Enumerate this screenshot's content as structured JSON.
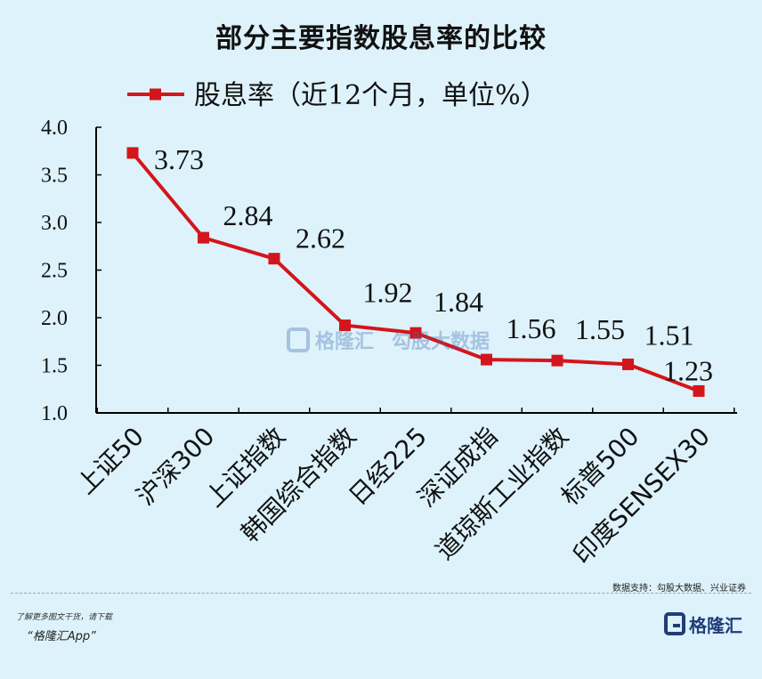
{
  "title": "部分主要指数股息率的比较",
  "source_note": "数据支持：勾股大数据、兴业证券",
  "promo_line1": "了解更多图文干货，请下载",
  "promo_line2": "“格隆汇App”",
  "logo_text": "格隆汇",
  "watermark_text1": "格隆汇",
  "watermark_text2": "勾股大数据",
  "colors": {
    "series": "#d4151b",
    "background": "#ddf2fb",
    "axis": "#000000"
  },
  "chart_data": {
    "type": "line",
    "categories": [
      "上证50",
      "沪深300",
      "上证指数",
      "韩国综合指数",
      "日经225",
      "深证成指",
      "道琼斯工业指数",
      "标普500",
      "印度SENSEX30"
    ],
    "series": [
      {
        "name": "股息率（近12个月，单位%）",
        "values": [
          3.73,
          2.84,
          2.62,
          1.92,
          1.84,
          1.56,
          1.55,
          1.51,
          1.23
        ],
        "labels": [
          "3.73",
          "2.84",
          "2.62",
          "1.92",
          "1.84",
          "1.56",
          "1.55",
          "1.51",
          "1.23"
        ]
      }
    ],
    "ylim": [
      1.0,
      4.0
    ],
    "yticks": [
      "1.0",
      "1.5",
      "2.0",
      "2.5",
      "3.0",
      "3.5",
      "4.0"
    ],
    "legend_position": "top",
    "grid": false,
    "xlabel": "",
    "ylabel": ""
  }
}
